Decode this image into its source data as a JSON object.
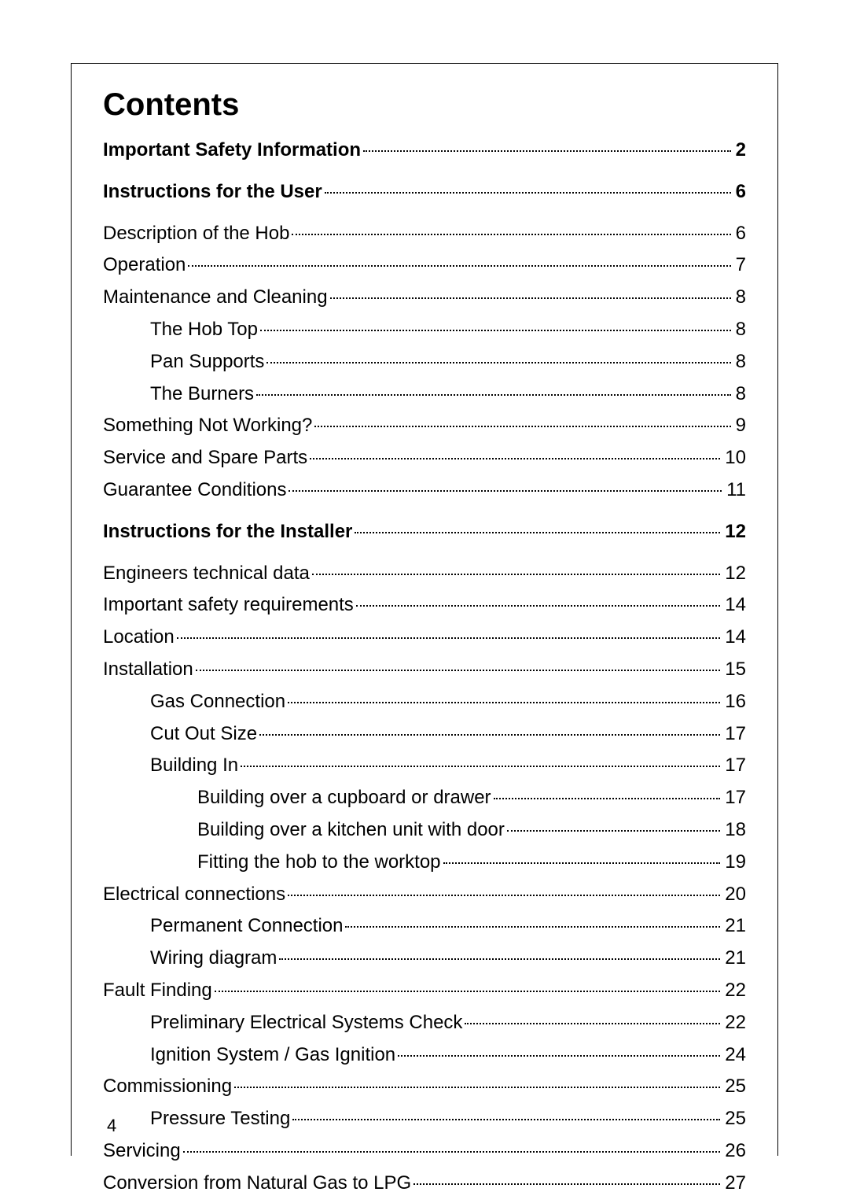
{
  "title": "Contents",
  "page_number": "4",
  "entries": [
    {
      "label": "Important Safety Information",
      "page": "2",
      "bold": true,
      "indent": 0,
      "first": true
    },
    {
      "label": "Instructions for the User",
      "page": "6",
      "bold": true,
      "indent": 0
    },
    {
      "label": "Description of the Hob",
      "page": "6",
      "bold": false,
      "indent": 0
    },
    {
      "label": "Operation",
      "page": "7",
      "bold": false,
      "indent": 0
    },
    {
      "label": "Maintenance and Cleaning",
      "page": "8",
      "bold": false,
      "indent": 0
    },
    {
      "label": "The Hob Top",
      "page": "8",
      "bold": false,
      "indent": 1
    },
    {
      "label": "Pan Supports",
      "page": "8",
      "bold": false,
      "indent": 1
    },
    {
      "label": "The Burners",
      "page": "8",
      "bold": false,
      "indent": 1
    },
    {
      "label": "Something Not Working?",
      "page": "9",
      "bold": false,
      "indent": 0
    },
    {
      "label": "Service and Spare Parts",
      "page": "10",
      "bold": false,
      "indent": 0
    },
    {
      "label": "Guarantee Conditions",
      "page": "11",
      "bold": false,
      "indent": 0
    },
    {
      "label": "Instructions for the Installer",
      "page": "12",
      "bold": true,
      "indent": 0
    },
    {
      "label": "Engineers technical data",
      "page": "12",
      "bold": false,
      "indent": 0
    },
    {
      "label": "Important safety requirements",
      "page": "14",
      "bold": false,
      "indent": 0
    },
    {
      "label": "Location",
      "page": "14",
      "bold": false,
      "indent": 0
    },
    {
      "label": "Installation",
      "page": "15",
      "bold": false,
      "indent": 0
    },
    {
      "label": "Gas Connection",
      "page": "16",
      "bold": false,
      "indent": 1
    },
    {
      "label": "Cut Out Size",
      "page": "17",
      "bold": false,
      "indent": 1
    },
    {
      "label": "Building In",
      "page": "17",
      "bold": false,
      "indent": 1
    },
    {
      "label": "Building over a cupboard or drawer",
      "page": "17",
      "bold": false,
      "indent": 2
    },
    {
      "label": "Building over a kitchen unit with door",
      "page": "18",
      "bold": false,
      "indent": 2
    },
    {
      "label": "Fitting the hob to the worktop",
      "page": "19",
      "bold": false,
      "indent": 2
    },
    {
      "label": "Electrical connections",
      "page": "20",
      "bold": false,
      "indent": 0
    },
    {
      "label": "Permanent Connection",
      "page": "21",
      "bold": false,
      "indent": 1
    },
    {
      "label": "Wiring diagram",
      "page": "21",
      "bold": false,
      "indent": 1
    },
    {
      "label": "Fault Finding",
      "page": "22",
      "bold": false,
      "indent": 0
    },
    {
      "label": "Preliminary Electrical Systems Check",
      "page": "22",
      "bold": false,
      "indent": 1
    },
    {
      "label": "Ignition System / Gas Ignition",
      "page": "24",
      "bold": false,
      "indent": 1
    },
    {
      "label": "Commissioning",
      "page": "25",
      "bold": false,
      "indent": 0
    },
    {
      "label": "Pressure Testing",
      "page": "25",
      "bold": false,
      "indent": 1
    },
    {
      "label": "Servicing",
      "page": "26",
      "bold": false,
      "indent": 0
    },
    {
      "label": "Conversion from Natural Gas to LPG",
      "page": "27",
      "bold": false,
      "indent": 0
    }
  ]
}
